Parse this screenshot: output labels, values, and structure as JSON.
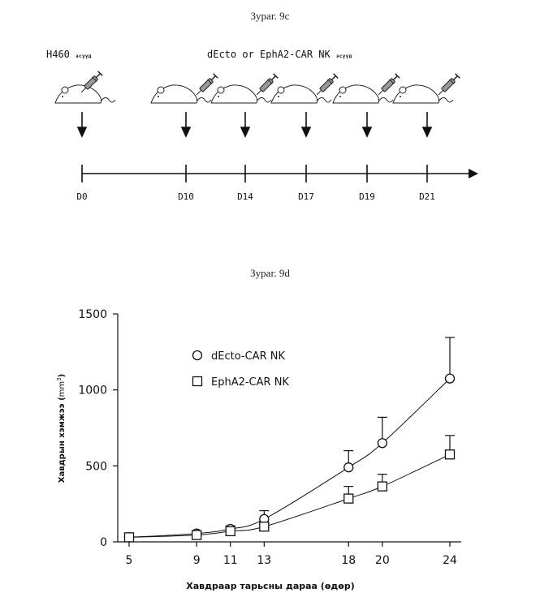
{
  "figure_9c": {
    "title": "Зураг. 9c",
    "label_left_main": "H460",
    "label_left_sub": "эсүүд",
    "label_center_main": "dEcto or EphA2-CAR NK",
    "label_center_sub": "эсүүд",
    "timeline_days": [
      "D0",
      "D10",
      "D14",
      "D17",
      "D19",
      "D21"
    ]
  },
  "figure_9d": {
    "title": "Зураг. 9d"
  },
  "chart_data": {
    "type": "line",
    "x": [
      5,
      9,
      11,
      13,
      18,
      20,
      24
    ],
    "xlabel": "Хавдраар тарьсны дараа (өдөр)",
    "ylabel": "Хавдрын хэмжээ (mm³)",
    "ylabel_main": "Хавдрын хэмжээ",
    "ylabel_unit": "mm",
    "ylabel_unit_exp": "3",
    "xlim": [
      5,
      24
    ],
    "ylim": [
      0,
      1500
    ],
    "yticks": [
      0,
      500,
      1000,
      1500
    ],
    "xticks": [
      5,
      9,
      11,
      13,
      18,
      20,
      24
    ],
    "grid": false,
    "legend_position": "upper-left",
    "series": [
      {
        "name": "dEcto-CAR NK",
        "marker": "circle",
        "values": [
          30,
          55,
          85,
          150,
          490,
          650,
          1075
        ],
        "errors": [
          10,
          15,
          20,
          55,
          110,
          170,
          270
        ]
      },
      {
        "name": "EphA2-CAR NK",
        "marker": "square",
        "values": [
          30,
          45,
          70,
          100,
          285,
          365,
          575
        ],
        "errors": [
          10,
          10,
          15,
          25,
          80,
          80,
          125
        ]
      }
    ]
  }
}
